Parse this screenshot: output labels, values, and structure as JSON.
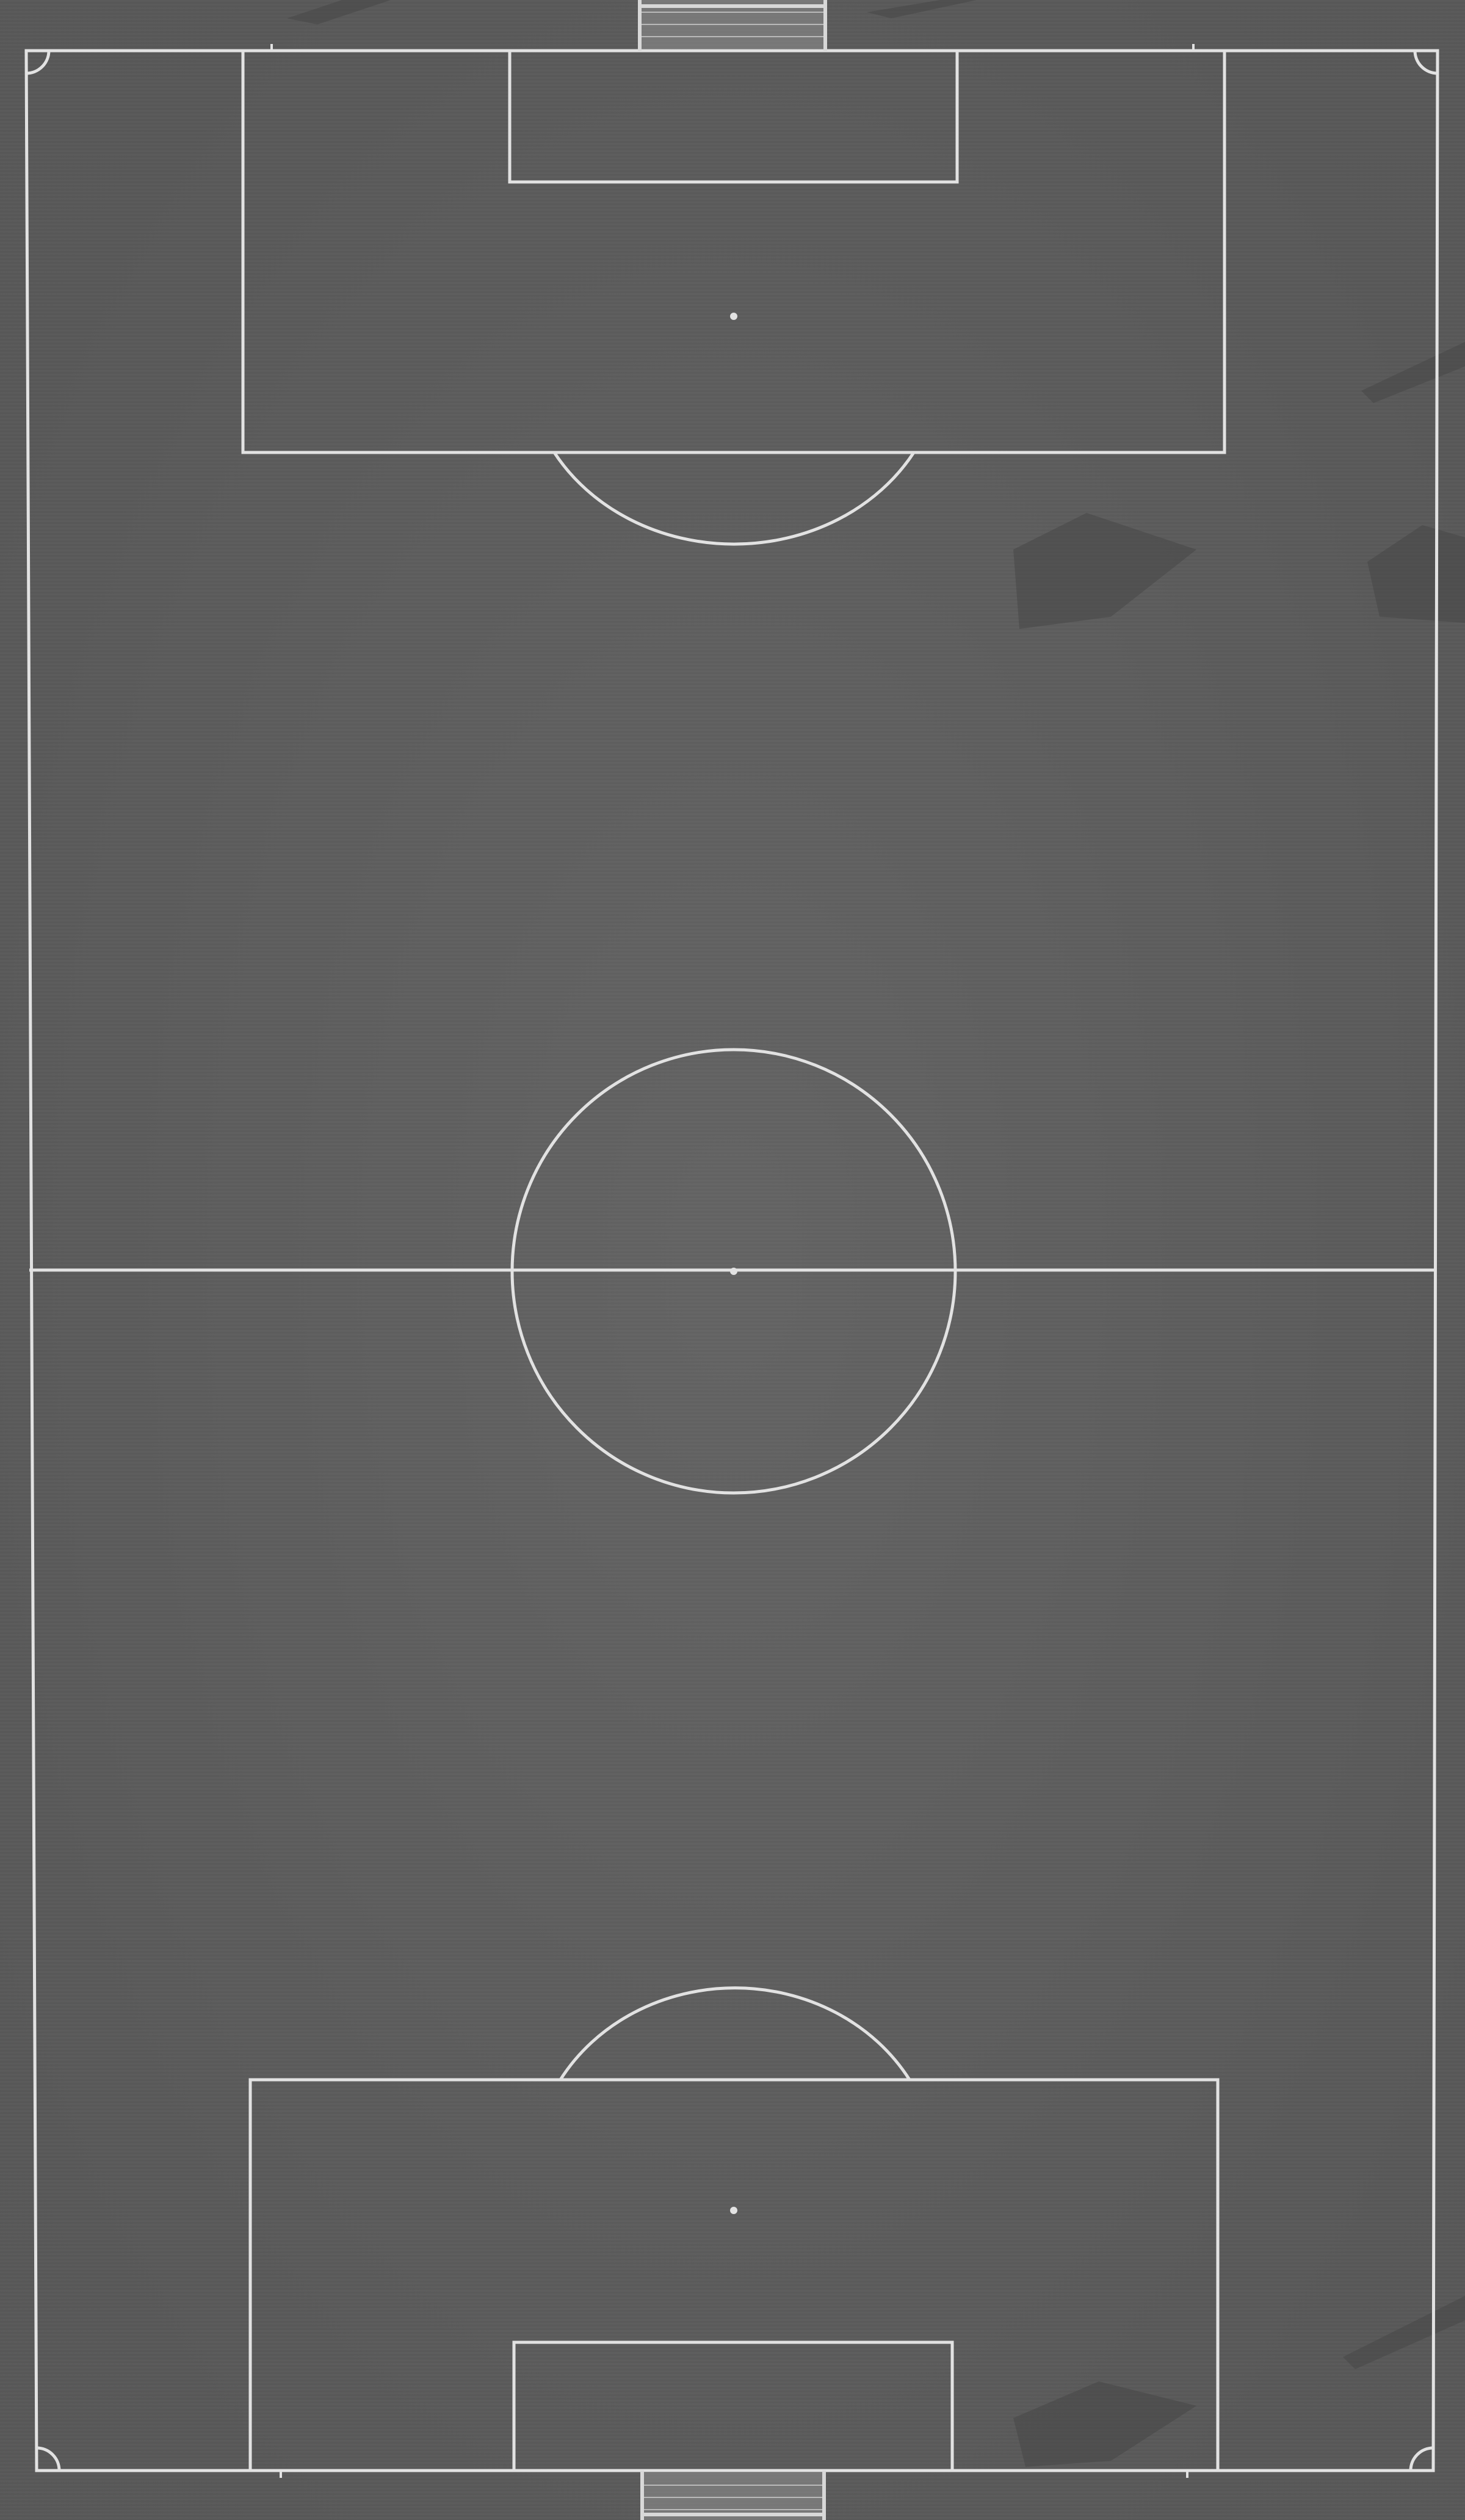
{
  "scene": {
    "subject": "aerial-soccer-pitch",
    "colors": {
      "turf": "#5e5e5e",
      "turf_light": "#6a6a6a",
      "turf_dark": "#555555",
      "line": "#e2e2e2",
      "shadow": "#474747",
      "goal_frame": "#d8d8d8",
      "goal_net": "#b9b9b9"
    }
  }
}
